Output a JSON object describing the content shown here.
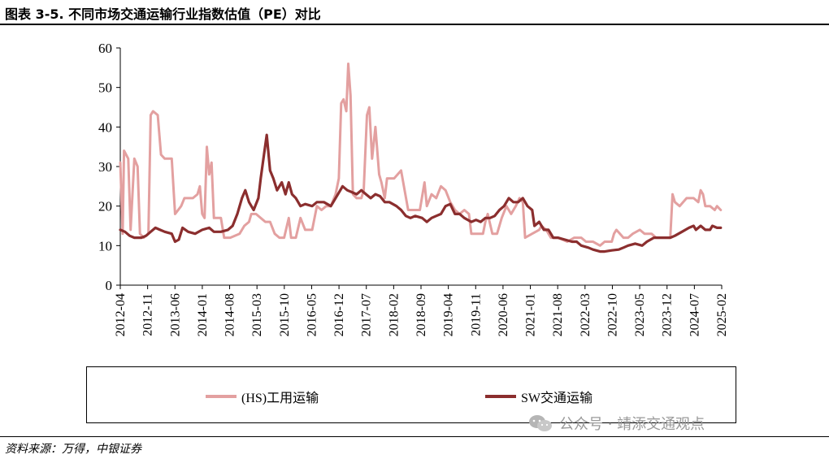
{
  "header": {
    "title": "图表 3-5. 不同市场交通运输行业指数估值（PE）对比"
  },
  "footer": {
    "source": "资料来源：万得，中银证券"
  },
  "watermark": {
    "text": "公众号 · 靖添交通观点",
    "icon": "wechat-icon"
  },
  "chart_data": {
    "type": "line",
    "title": "",
    "xlabel": "",
    "ylabel": "",
    "ylim": [
      0,
      60
    ],
    "yticks": [
      0,
      10,
      20,
      30,
      40,
      50,
      60
    ],
    "xlim": [
      2012.25,
      2025.1
    ],
    "x_tick_labels": [
      "2012-04",
      "2012-11",
      "2013-06",
      "2014-01",
      "2014-08",
      "2015-03",
      "2015-10",
      "2016-05",
      "2016-12",
      "2017-07",
      "2018-02",
      "2018-09",
      "2019-04",
      "2019-11",
      "2020-06",
      "2021-01",
      "2021-08",
      "2022-03",
      "2022-10",
      "2023-05",
      "2023-12",
      "2024-07",
      "2025-02"
    ],
    "grid": false,
    "legend_position": "bottom",
    "series": [
      {
        "name": "(HS)工用运输",
        "color": "#e3a0a0",
        "points": [
          [
            2012.25,
            31
          ],
          [
            2012.3,
            13
          ],
          [
            2012.33,
            34
          ],
          [
            2012.42,
            32
          ],
          [
            2012.47,
            14
          ],
          [
            2012.55,
            32
          ],
          [
            2012.62,
            30
          ],
          [
            2012.67,
            13
          ],
          [
            2012.75,
            12
          ],
          [
            2012.85,
            13
          ],
          [
            2012.9,
            43
          ],
          [
            2012.95,
            44
          ],
          [
            2013.05,
            43
          ],
          [
            2013.12,
            33
          ],
          [
            2013.2,
            32
          ],
          [
            2013.35,
            32
          ],
          [
            2013.42,
            18
          ],
          [
            2013.55,
            20
          ],
          [
            2013.62,
            22
          ],
          [
            2013.8,
            22
          ],
          [
            2013.9,
            23
          ],
          [
            2013.95,
            25
          ],
          [
            2014.0,
            18
          ],
          [
            2014.05,
            17
          ],
          [
            2014.1,
            35
          ],
          [
            2014.15,
            28
          ],
          [
            2014.2,
            31
          ],
          [
            2014.25,
            17
          ],
          [
            2014.4,
            17
          ],
          [
            2014.47,
            12
          ],
          [
            2014.6,
            12
          ],
          [
            2014.8,
            13
          ],
          [
            2014.9,
            15
          ],
          [
            2015.0,
            16
          ],
          [
            2015.05,
            18
          ],
          [
            2015.15,
            18
          ],
          [
            2015.25,
            17
          ],
          [
            2015.35,
            16
          ],
          [
            2015.45,
            16
          ],
          [
            2015.55,
            13
          ],
          [
            2015.65,
            12
          ],
          [
            2015.75,
            12
          ],
          [
            2015.85,
            17
          ],
          [
            2015.9,
            12
          ],
          [
            2016.0,
            12
          ],
          [
            2016.1,
            17
          ],
          [
            2016.2,
            14
          ],
          [
            2016.35,
            14
          ],
          [
            2016.45,
            20
          ],
          [
            2016.55,
            19
          ],
          [
            2016.65,
            20
          ],
          [
            2016.75,
            20
          ],
          [
            2016.85,
            23
          ],
          [
            2016.92,
            27
          ],
          [
            2016.97,
            46
          ],
          [
            2017.02,
            47
          ],
          [
            2017.08,
            44
          ],
          [
            2017.12,
            56
          ],
          [
            2017.17,
            48
          ],
          [
            2017.22,
            23
          ],
          [
            2017.3,
            22
          ],
          [
            2017.4,
            22
          ],
          [
            2017.45,
            24
          ],
          [
            2017.52,
            43
          ],
          [
            2017.57,
            45
          ],
          [
            2017.63,
            32
          ],
          [
            2017.7,
            40
          ],
          [
            2017.78,
            28
          ],
          [
            2017.83,
            26
          ],
          [
            2017.9,
            22
          ],
          [
            2017.95,
            27
          ],
          [
            2018.1,
            27
          ],
          [
            2018.25,
            29
          ],
          [
            2018.4,
            19
          ],
          [
            2018.55,
            19
          ],
          [
            2018.65,
            19
          ],
          [
            2018.75,
            26
          ],
          [
            2018.8,
            20
          ],
          [
            2018.9,
            23
          ],
          [
            2019.0,
            22
          ],
          [
            2019.1,
            25
          ],
          [
            2019.2,
            24
          ],
          [
            2019.3,
            21
          ],
          [
            2019.4,
            19
          ],
          [
            2019.5,
            18
          ],
          [
            2019.6,
            19
          ],
          [
            2019.7,
            18
          ],
          [
            2019.75,
            13
          ],
          [
            2019.9,
            13
          ],
          [
            2020.0,
            13
          ],
          [
            2020.05,
            16
          ],
          [
            2020.1,
            18
          ],
          [
            2020.2,
            13
          ],
          [
            2020.3,
            13
          ],
          [
            2020.4,
            17
          ],
          [
            2020.5,
            20
          ],
          [
            2020.6,
            18
          ],
          [
            2020.7,
            20
          ],
          [
            2020.78,
            22
          ],
          [
            2020.85,
            21
          ],
          [
            2020.9,
            12
          ],
          [
            2021.05,
            13
          ],
          [
            2021.2,
            14
          ],
          [
            2021.25,
            15
          ],
          [
            2021.35,
            14
          ],
          [
            2021.45,
            12
          ],
          [
            2021.6,
            12
          ],
          [
            2021.8,
            11
          ],
          [
            2021.95,
            12
          ],
          [
            2022.1,
            12
          ],
          [
            2022.2,
            11
          ],
          [
            2022.35,
            11
          ],
          [
            2022.5,
            10
          ],
          [
            2022.6,
            11
          ],
          [
            2022.75,
            11
          ],
          [
            2022.8,
            13
          ],
          [
            2022.85,
            14
          ],
          [
            2023.0,
            12
          ],
          [
            2023.1,
            12
          ],
          [
            2023.2,
            13
          ],
          [
            2023.35,
            14
          ],
          [
            2023.45,
            13
          ],
          [
            2023.6,
            13
          ],
          [
            2023.7,
            12
          ],
          [
            2023.82,
            12
          ],
          [
            2023.9,
            12
          ],
          [
            2024.0,
            12
          ],
          [
            2024.05,
            23
          ],
          [
            2024.1,
            21
          ],
          [
            2024.2,
            20
          ],
          [
            2024.35,
            22
          ],
          [
            2024.5,
            22
          ],
          [
            2024.6,
            21
          ],
          [
            2024.65,
            24
          ],
          [
            2024.7,
            23
          ],
          [
            2024.75,
            20
          ],
          [
            2024.85,
            20
          ],
          [
            2024.95,
            19
          ],
          [
            2025.0,
            20
          ],
          [
            2025.08,
            19
          ]
        ]
      },
      {
        "name": "SW交通运输",
        "color": "#8b2e2e",
        "points": [
          [
            2012.25,
            14
          ],
          [
            2012.35,
            13.5
          ],
          [
            2012.45,
            12.5
          ],
          [
            2012.55,
            12
          ],
          [
            2012.7,
            12
          ],
          [
            2012.8,
            12.5
          ],
          [
            2012.9,
            13.5
          ],
          [
            2013.0,
            14.5
          ],
          [
            2013.1,
            14
          ],
          [
            2013.2,
            13.5
          ],
          [
            2013.35,
            13
          ],
          [
            2013.42,
            11
          ],
          [
            2013.5,
            11.5
          ],
          [
            2013.58,
            14.5
          ],
          [
            2013.7,
            13.5
          ],
          [
            2013.85,
            13
          ],
          [
            2014.0,
            14
          ],
          [
            2014.15,
            14.5
          ],
          [
            2014.25,
            13.5
          ],
          [
            2014.4,
            13.5
          ],
          [
            2014.55,
            14
          ],
          [
            2014.65,
            15
          ],
          [
            2014.75,
            18
          ],
          [
            2014.85,
            22
          ],
          [
            2014.92,
            24
          ],
          [
            2015.0,
            21
          ],
          [
            2015.1,
            19
          ],
          [
            2015.2,
            22
          ],
          [
            2015.25,
            27
          ],
          [
            2015.32,
            33
          ],
          [
            2015.38,
            38
          ],
          [
            2015.45,
            29
          ],
          [
            2015.52,
            27
          ],
          [
            2015.6,
            24
          ],
          [
            2015.7,
            26
          ],
          [
            2015.78,
            23
          ],
          [
            2015.85,
            26
          ],
          [
            2015.92,
            23
          ],
          [
            2016.0,
            22
          ],
          [
            2016.1,
            20
          ],
          [
            2016.2,
            20.5
          ],
          [
            2016.35,
            20
          ],
          [
            2016.45,
            21
          ],
          [
            2016.6,
            21
          ],
          [
            2016.75,
            20
          ],
          [
            2016.85,
            22
          ],
          [
            2016.95,
            24
          ],
          [
            2017.0,
            25
          ],
          [
            2017.1,
            24
          ],
          [
            2017.2,
            23.5
          ],
          [
            2017.3,
            23
          ],
          [
            2017.4,
            24
          ],
          [
            2017.5,
            23
          ],
          [
            2017.6,
            22
          ],
          [
            2017.7,
            23
          ],
          [
            2017.8,
            22.5
          ],
          [
            2017.9,
            21
          ],
          [
            2018.0,
            21
          ],
          [
            2018.15,
            20
          ],
          [
            2018.25,
            19
          ],
          [
            2018.35,
            17.5
          ],
          [
            2018.45,
            17
          ],
          [
            2018.55,
            17.5
          ],
          [
            2018.7,
            17
          ],
          [
            2018.8,
            16
          ],
          [
            2018.9,
            17
          ],
          [
            2019.0,
            17.5
          ],
          [
            2019.1,
            18
          ],
          [
            2019.2,
            20
          ],
          [
            2019.3,
            20.5
          ],
          [
            2019.4,
            18
          ],
          [
            2019.5,
            18
          ],
          [
            2019.6,
            17
          ],
          [
            2019.75,
            16
          ],
          [
            2019.85,
            16.5
          ],
          [
            2019.95,
            16
          ],
          [
            2020.05,
            17
          ],
          [
            2020.15,
            17
          ],
          [
            2020.25,
            17.5
          ],
          [
            2020.35,
            19
          ],
          [
            2020.45,
            20
          ],
          [
            2020.55,
            22
          ],
          [
            2020.65,
            21
          ],
          [
            2020.75,
            21
          ],
          [
            2020.85,
            22
          ],
          [
            2020.95,
            20
          ],
          [
            2021.05,
            19
          ],
          [
            2021.1,
            15
          ],
          [
            2021.2,
            16
          ],
          [
            2021.3,
            14
          ],
          [
            2021.4,
            14
          ],
          [
            2021.5,
            12
          ],
          [
            2021.6,
            12
          ],
          [
            2021.75,
            11.5
          ],
          [
            2021.9,
            11
          ],
          [
            2022.0,
            11
          ],
          [
            2022.1,
            10
          ],
          [
            2022.25,
            9.5
          ],
          [
            2022.35,
            9
          ],
          [
            2022.5,
            8.5
          ],
          [
            2022.6,
            8.5
          ],
          [
            2022.75,
            8.8
          ],
          [
            2022.9,
            9
          ],
          [
            2023.0,
            9.5
          ],
          [
            2023.1,
            10
          ],
          [
            2023.25,
            10.5
          ],
          [
            2023.4,
            10
          ],
          [
            2023.5,
            11
          ],
          [
            2023.65,
            12
          ],
          [
            2023.8,
            12
          ],
          [
            2023.9,
            12
          ],
          [
            2024.0,
            12
          ],
          [
            2024.1,
            12.5
          ],
          [
            2024.25,
            13.5
          ],
          [
            2024.4,
            14.5
          ],
          [
            2024.5,
            15
          ],
          [
            2024.55,
            14
          ],
          [
            2024.65,
            15
          ],
          [
            2024.75,
            14
          ],
          [
            2024.85,
            14
          ],
          [
            2024.9,
            15
          ],
          [
            2025.0,
            14.5
          ],
          [
            2025.08,
            14.5
          ]
        ]
      }
    ]
  }
}
